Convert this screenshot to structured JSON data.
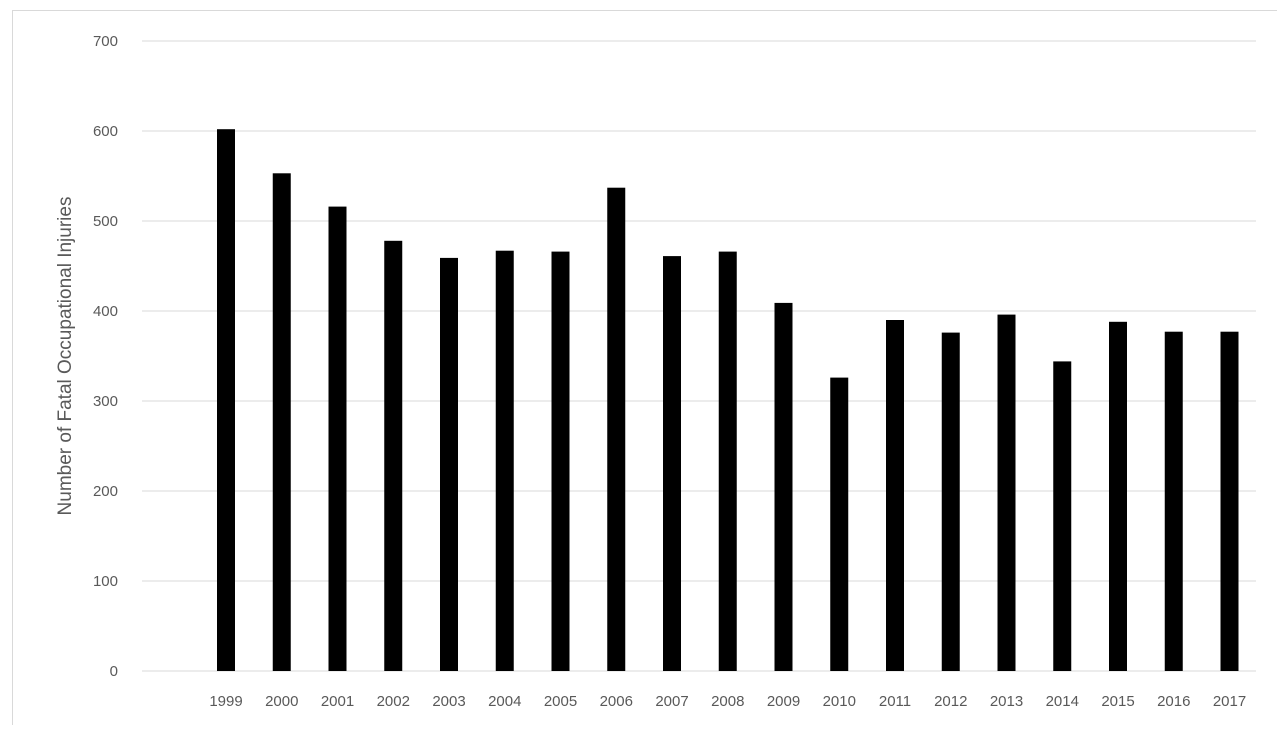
{
  "chart_data": {
    "type": "bar",
    "title": "",
    "xlabel": "",
    "ylabel": "Number of  Fatal Occupational Injuries",
    "categories": [
      "1999",
      "2000",
      "2001",
      "2002",
      "2003",
      "2004",
      "2005",
      "2006",
      "2007",
      "2008",
      "2009",
      "2010",
      "2011",
      "2012",
      "2013",
      "2014",
      "2015",
      "2016",
      "2017"
    ],
    "values": [
      602,
      553,
      516,
      478,
      459,
      467,
      466,
      537,
      461,
      466,
      409,
      326,
      390,
      376,
      396,
      344,
      388,
      377,
      377
    ],
    "ylim": [
      0,
      700
    ],
    "yticks": [
      "0",
      "100",
      "200",
      "300",
      "400",
      "500",
      "600",
      "700"
    ],
    "grid": true,
    "legend": "none",
    "bar_color": "#000000",
    "grid_color": "#d9d9d9",
    "text_color": "#595959"
  }
}
